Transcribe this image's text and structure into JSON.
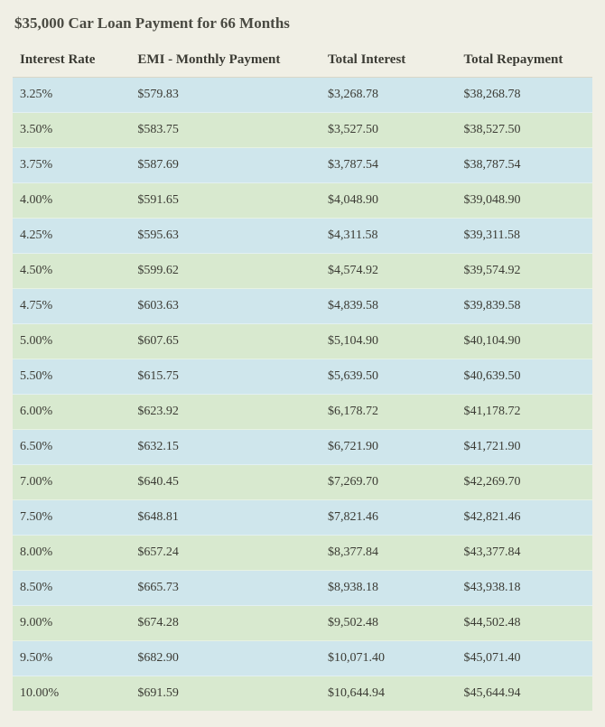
{
  "title": "$35,000 Car Loan Payment for 66 Months",
  "columns": [
    "Interest Rate",
    "EMI - Monthly Payment",
    "Total Interest",
    "Total Repayment"
  ],
  "colors": {
    "container_bg": "#f0efe5",
    "row_blue": "#cfe6ec",
    "row_green": "#d8e9cf",
    "text": "#3b3b34"
  },
  "rows": [
    {
      "rate": "3.25%",
      "emi": "$579.83",
      "interest": "$3,268.78",
      "repay": "$38,268.78"
    },
    {
      "rate": "3.50%",
      "emi": "$583.75",
      "interest": "$3,527.50",
      "repay": "$38,527.50"
    },
    {
      "rate": "3.75%",
      "emi": "$587.69",
      "interest": "$3,787.54",
      "repay": "$38,787.54"
    },
    {
      "rate": "4.00%",
      "emi": "$591.65",
      "interest": "$4,048.90",
      "repay": "$39,048.90"
    },
    {
      "rate": "4.25%",
      "emi": "$595.63",
      "interest": "$4,311.58",
      "repay": "$39,311.58"
    },
    {
      "rate": "4.50%",
      "emi": "$599.62",
      "interest": "$4,574.92",
      "repay": "$39,574.92"
    },
    {
      "rate": "4.75%",
      "emi": "$603.63",
      "interest": "$4,839.58",
      "repay": "$39,839.58"
    },
    {
      "rate": "5.00%",
      "emi": "$607.65",
      "interest": "$5,104.90",
      "repay": "$40,104.90"
    },
    {
      "rate": "5.50%",
      "emi": "$615.75",
      "interest": "$5,639.50",
      "repay": "$40,639.50"
    },
    {
      "rate": "6.00%",
      "emi": "$623.92",
      "interest": "$6,178.72",
      "repay": "$41,178.72"
    },
    {
      "rate": "6.50%",
      "emi": "$632.15",
      "interest": "$6,721.90",
      "repay": "$41,721.90"
    },
    {
      "rate": "7.00%",
      "emi": "$640.45",
      "interest": "$7,269.70",
      "repay": "$42,269.70"
    },
    {
      "rate": "7.50%",
      "emi": "$648.81",
      "interest": "$7,821.46",
      "repay": "$42,821.46"
    },
    {
      "rate": "8.00%",
      "emi": "$657.24",
      "interest": "$8,377.84",
      "repay": "$43,377.84"
    },
    {
      "rate": "8.50%",
      "emi": "$665.73",
      "interest": "$8,938.18",
      "repay": "$43,938.18"
    },
    {
      "rate": "9.00%",
      "emi": "$674.28",
      "interest": "$9,502.48",
      "repay": "$44,502.48"
    },
    {
      "rate": "9.50%",
      "emi": "$682.90",
      "interest": "$10,071.40",
      "repay": "$45,071.40"
    },
    {
      "rate": "10.00%",
      "emi": "$691.59",
      "interest": "$10,644.94",
      "repay": "$45,644.94"
    }
  ]
}
